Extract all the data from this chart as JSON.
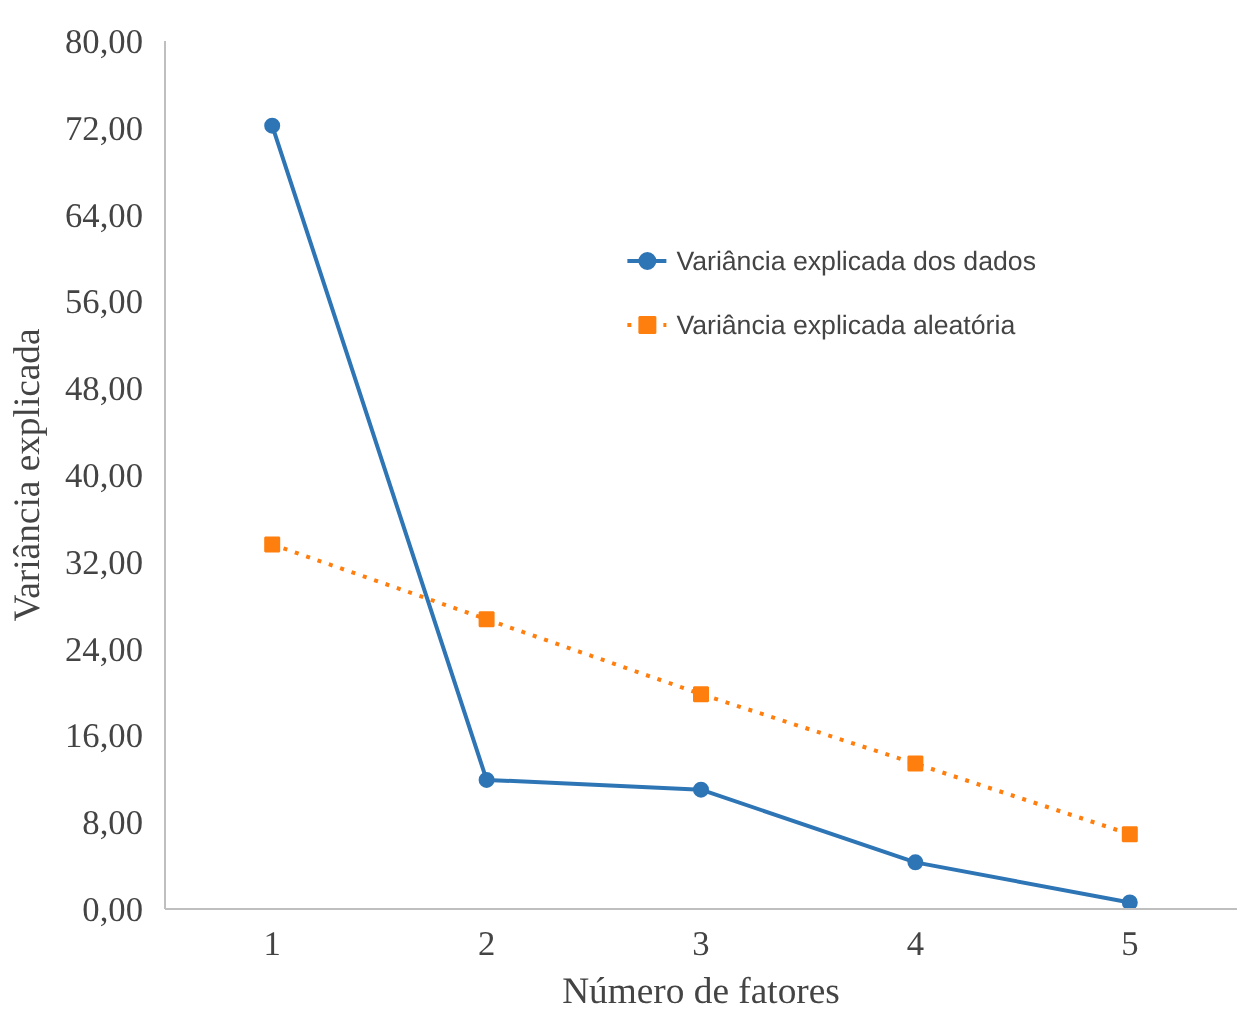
{
  "chart_data": {
    "type": "line",
    "xlabel": "Número de fatores",
    "ylabel": "Variância explicada",
    "categories": [
      "1",
      "2",
      "3",
      "4",
      "5"
    ],
    "series": [
      {
        "name": "Variância explicada dos dados",
        "color": "#2e75b6",
        "values": [
          72.2,
          11.9,
          11.0,
          4.3,
          0.6
        ],
        "marker": "circle",
        "line_style": "solid"
      },
      {
        "name": "Variância explicada aleatória",
        "color": "#ff7f0e",
        "values": [
          33.6,
          26.7,
          19.8,
          13.4,
          6.9
        ],
        "marker": "square",
        "line_style": "dotted"
      }
    ],
    "ylim": [
      0,
      80
    ],
    "yticks": [
      {
        "value": 0,
        "label": "0,00"
      },
      {
        "value": 8,
        "label": "8,00"
      },
      {
        "value": 16,
        "label": "16,00"
      },
      {
        "value": 24,
        "label": "24,00"
      },
      {
        "value": 32,
        "label": "32,00"
      },
      {
        "value": 40,
        "label": "40,00"
      },
      {
        "value": 48,
        "label": "48,00"
      },
      {
        "value": 56,
        "label": "56,00"
      },
      {
        "value": 64,
        "label": "64,00"
      },
      {
        "value": 72,
        "label": "72,00"
      },
      {
        "value": 80,
        "label": "80,00"
      }
    ],
    "grid": false,
    "legend": "top right"
  }
}
